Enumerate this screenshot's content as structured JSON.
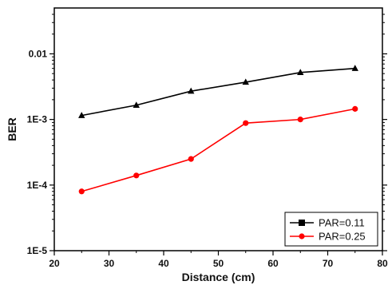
{
  "chart_data": {
    "type": "line",
    "x_axis": {
      "label": "Distance (cm)",
      "range": [
        20,
        80
      ],
      "ticks": [
        20,
        30,
        40,
        50,
        60,
        70,
        80
      ],
      "tick_labels": [
        "20",
        "30",
        "40",
        "50",
        "60",
        "70",
        "80"
      ]
    },
    "y_axis": {
      "label": "BER",
      "scale": "log",
      "range": [
        1e-05,
        0.05
      ],
      "ticks": [
        1e-05,
        0.0001,
        0.001,
        0.01
      ],
      "tick_labels": [
        "1E-5",
        "1E-4",
        "1E-3",
        "0.01"
      ]
    },
    "legend": {
      "position": "bottom-right"
    },
    "series": [
      {
        "name": "PAR=0.11",
        "color": "#000000",
        "marker": "square",
        "x": [
          25,
          35,
          45,
          55,
          65,
          75
        ],
        "y": [
          0.00115,
          0.00165,
          0.0027,
          0.0037,
          0.0052,
          0.006
        ]
      },
      {
        "name": "PAR=0.25",
        "color": "#ff0000",
        "marker": "circle",
        "x": [
          25,
          35,
          45,
          55,
          65,
          75
        ],
        "y": [
          8e-05,
          0.00014,
          0.00025,
          0.00088,
          0.001,
          0.00145
        ]
      }
    ]
  }
}
